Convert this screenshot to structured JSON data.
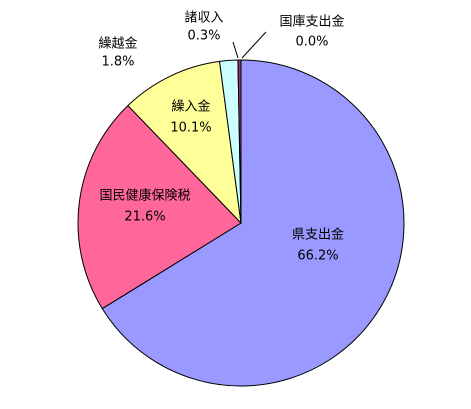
{
  "chart_data": {
    "type": "pie",
    "categories": [
      "県支出金",
      "国民健康保険税",
      "繰入金",
      "繰越金",
      "諸収入",
      "国庫支出金"
    ],
    "values": [
      66.2,
      21.6,
      10.1,
      1.8,
      0.3,
      0.0
    ],
    "value_labels": [
      "66.2%",
      "21.6%",
      "10.1%",
      "1.8%",
      "0.3%",
      "0.0%"
    ],
    "colors": [
      "#9999ff",
      "#ff6699",
      "#ffff99",
      "#ccffff",
      "#993366",
      "#ff6600"
    ]
  }
}
